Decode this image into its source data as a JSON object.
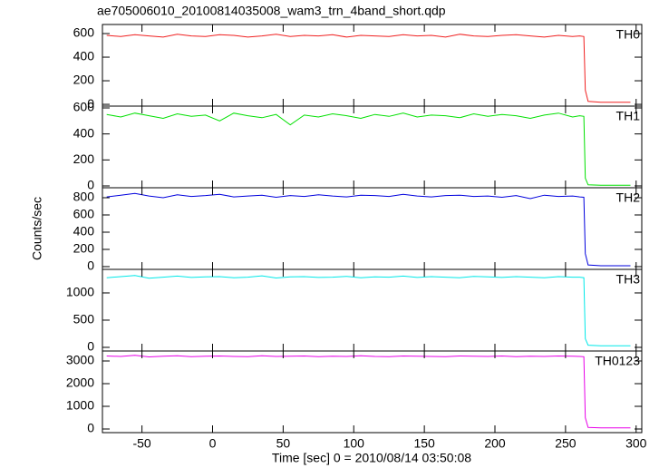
{
  "title": "ae705006010_20100814035008_wam3_trn_4band_short.qdp",
  "xlabel": "Time [sec] 0 = 2010/08/14 03:50:08",
  "ylabel": "Counts/sec",
  "chart_data": [
    {
      "type": "line",
      "x": [
        -75,
        -65,
        -55,
        -45,
        -35,
        -25,
        -15,
        -5,
        5,
        15,
        25,
        35,
        45,
        55,
        65,
        75,
        85,
        95,
        105,
        115,
        125,
        135,
        145,
        155,
        165,
        175,
        185,
        195,
        205,
        215,
        225,
        235,
        245,
        255,
        260,
        263,
        264,
        266,
        275,
        285,
        296
      ],
      "series": [
        {
          "name": "TH0",
          "color": "#f02020",
          "values": [
            585,
            575,
            590,
            580,
            570,
            595,
            580,
            575,
            590,
            585,
            570,
            580,
            595,
            575,
            585,
            580,
            590,
            570,
            585,
            580,
            575,
            590,
            580,
            585,
            570,
            595,
            580,
            575,
            585,
            590,
            580,
            570,
            585,
            575,
            580,
            575,
            120,
            25,
            18,
            18,
            18
          ]
        }
      ],
      "xlim": [
        -78,
        304
      ],
      "xticks": [
        -50,
        0,
        50,
        100,
        150,
        200,
        250,
        300
      ],
      "ylim": [
        -15,
        677
      ],
      "yticks": [
        0,
        200,
        400,
        600
      ]
    },
    {
      "type": "line",
      "x": [
        -75,
        -65,
        -55,
        -45,
        -35,
        -25,
        -15,
        -5,
        5,
        15,
        25,
        35,
        45,
        55,
        65,
        75,
        85,
        95,
        105,
        115,
        125,
        135,
        145,
        155,
        165,
        175,
        185,
        195,
        205,
        215,
        225,
        235,
        245,
        255,
        260,
        263,
        264,
        266,
        275,
        285,
        296
      ],
      "series": [
        {
          "name": "TH1",
          "color": "#00e000",
          "values": [
            550,
            530,
            560,
            540,
            520,
            555,
            535,
            545,
            500,
            560,
            540,
            525,
            550,
            470,
            545,
            530,
            555,
            540,
            520,
            550,
            535,
            560,
            530,
            545,
            540,
            525,
            555,
            535,
            550,
            540,
            520,
            545,
            560,
            530,
            540,
            535,
            60,
            8,
            5,
            5,
            5
          ]
        }
      ],
      "xlim": [
        -78,
        304
      ],
      "xticks": [
        -50,
        0,
        50,
        100,
        150,
        200,
        250,
        300
      ],
      "ylim": [
        -14,
        614
      ],
      "yticks": [
        0,
        200,
        400,
        600
      ]
    },
    {
      "type": "line",
      "x": [
        -75,
        -65,
        -55,
        -45,
        -35,
        -25,
        -15,
        -5,
        5,
        15,
        25,
        35,
        45,
        55,
        65,
        75,
        85,
        95,
        105,
        115,
        125,
        135,
        145,
        155,
        165,
        175,
        185,
        195,
        205,
        215,
        225,
        235,
        245,
        255,
        260,
        263,
        264,
        266,
        275,
        285,
        296
      ],
      "series": [
        {
          "name": "TH2",
          "color": "#0000dd",
          "values": [
            810,
            830,
            850,
            820,
            800,
            835,
            815,
            825,
            840,
            810,
            820,
            830,
            805,
            825,
            815,
            835,
            820,
            810,
            830,
            825,
            815,
            840,
            820,
            810,
            825,
            830,
            815,
            820,
            805,
            825,
            790,
            830,
            815,
            820,
            810,
            805,
            150,
            20,
            10,
            10,
            10
          ]
        }
      ],
      "xlim": [
        -78,
        304
      ],
      "xticks": [
        -50,
        0,
        50,
        100,
        150,
        200,
        250,
        300
      ],
      "ylim": [
        -32,
        916
      ],
      "yticks": [
        0,
        200,
        400,
        600,
        800
      ]
    },
    {
      "type": "line",
      "x": [
        -75,
        -65,
        -55,
        -45,
        -35,
        -25,
        -15,
        -5,
        5,
        15,
        25,
        35,
        45,
        55,
        65,
        75,
        85,
        95,
        105,
        115,
        125,
        135,
        145,
        155,
        165,
        175,
        185,
        195,
        205,
        215,
        225,
        235,
        245,
        255,
        260,
        263,
        264,
        266,
        275,
        285,
        296
      ],
      "series": [
        {
          "name": "TH3",
          "color": "#00e8e8",
          "values": [
            1280,
            1300,
            1320,
            1270,
            1290,
            1310,
            1285,
            1295,
            1300,
            1280,
            1290,
            1315,
            1275,
            1295,
            1300,
            1285,
            1290,
            1305,
            1280,
            1295,
            1290,
            1310,
            1285,
            1300,
            1290,
            1280,
            1305,
            1295,
            1285,
            1300,
            1290,
            1280,
            1300,
            1290,
            1290,
            1280,
            160,
            40,
            30,
            30,
            30
          ]
        }
      ],
      "xlim": [
        -78,
        304
      ],
      "xticks": [
        -50,
        0,
        50,
        100,
        150,
        200,
        250,
        300
      ],
      "ylim": [
        -67,
        1433
      ],
      "yticks": [
        0,
        500,
        1000
      ]
    },
    {
      "type": "line",
      "x": [
        -75,
        -65,
        -55,
        -45,
        -35,
        -25,
        -15,
        -5,
        5,
        15,
        25,
        35,
        45,
        55,
        65,
        75,
        85,
        95,
        105,
        115,
        125,
        135,
        145,
        155,
        165,
        175,
        185,
        195,
        205,
        215,
        225,
        235,
        245,
        255,
        260,
        263,
        264,
        266,
        275,
        285,
        296
      ],
      "series": [
        {
          "name": "TH0123",
          "color": "#e800e8",
          "values": [
            3220,
            3200,
            3250,
            3180,
            3210,
            3230,
            3190,
            3210,
            3220,
            3200,
            3190,
            3230,
            3200,
            3210,
            3220,
            3190,
            3210,
            3200,
            3230,
            3200,
            3190,
            3220,
            3210,
            3200,
            3190,
            3220,
            3210,
            3200,
            3220,
            3190,
            3210,
            3200,
            3220,
            3210,
            3200,
            3190,
            500,
            70,
            50,
            50,
            50
          ]
        }
      ],
      "xlim": [
        -78,
        304
      ],
      "xticks": [
        -50,
        0,
        50,
        100,
        150,
        200,
        250,
        300
      ],
      "ylim": [
        -160,
        3440
      ],
      "yticks": [
        0,
        1000,
        2000,
        3000
      ]
    }
  ]
}
